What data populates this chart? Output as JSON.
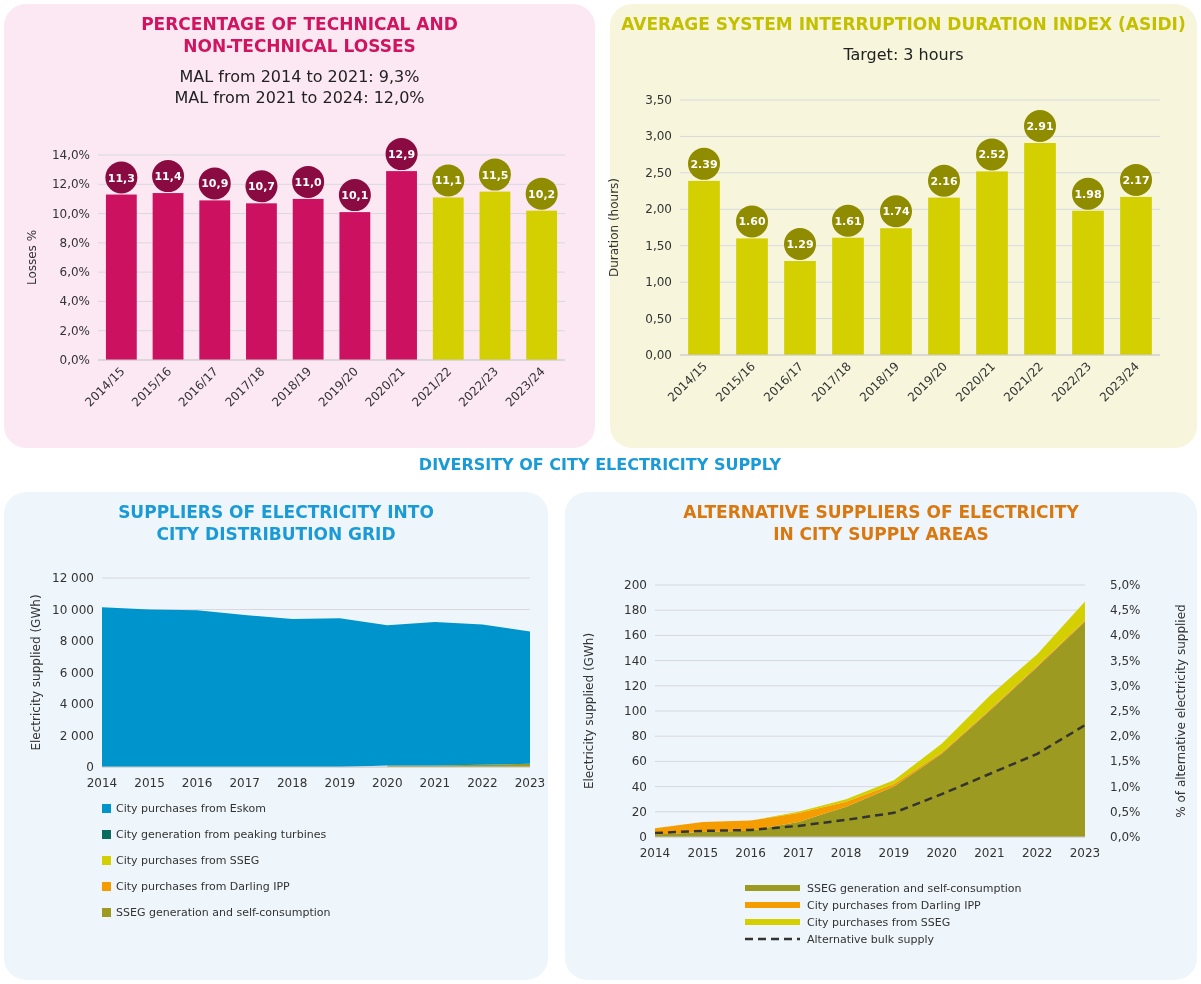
{
  "chart_data": [
    {
      "type": "bar",
      "title": "PERCENTAGE OF TECHNICAL AND NON-TECHNICAL LOSSES",
      "subtitle": "MAL from 2014 to 2021: 9,3%\nMAL from 2021 to 2024: 12,0%",
      "ylabel": "Losses %",
      "categories": [
        "2014/15",
        "2015/16",
        "2016/17",
        "2017/18",
        "2018/19",
        "2019/20",
        "2020/21",
        "2021/22",
        "2022/23",
        "2023/24"
      ],
      "values": [
        11.3,
        11.4,
        10.9,
        10.7,
        11.0,
        10.1,
        12.9,
        11.1,
        11.5,
        10.2
      ],
      "value_labels": [
        "11,3",
        "11,4",
        "10,9",
        "10,7",
        "11,0",
        "10,1",
        "12,9",
        "11,1",
        "11,5",
        "10,2"
      ],
      "colors": [
        "#cc1160",
        "#cc1160",
        "#cc1160",
        "#cc1160",
        "#cc1160",
        "#cc1160",
        "#cc1160",
        "#d4cf00",
        "#d4cf00",
        "#d4cf00"
      ],
      "ylim": [
        0,
        14
      ],
      "yticks": [
        {
          "value": 0,
          "label": "0,0%"
        },
        {
          "value": 2,
          "label": "2,0%"
        },
        {
          "value": 4,
          "label": "4,0%"
        },
        {
          "value": 6,
          "label": "6,0%"
        },
        {
          "value": 8,
          "label": "8,0%"
        },
        {
          "value": 10,
          "label": "10,0%"
        },
        {
          "value": 12,
          "label": "12,0%"
        },
        {
          "value": 14,
          "label": "14,0%"
        }
      ],
      "grid": "y"
    },
    {
      "type": "bar",
      "title": "AVERAGE SYSTEM INTERRUPTION DURATION INDEX (ASIDI)",
      "subtitle": "Target: 3 hours",
      "ylabel": "Duration (hours)",
      "categories": [
        "2014/15",
        "2015/16",
        "2016/17",
        "2017/18",
        "2018/19",
        "2019/20",
        "2020/21",
        "2021/22",
        "2022/23",
        "2023/24"
      ],
      "values": [
        2.39,
        1.6,
        1.29,
        1.61,
        1.74,
        2.16,
        2.52,
        2.91,
        1.98,
        2.17
      ],
      "value_labels": [
        "2.39",
        "1.60",
        "1.29",
        "1.61",
        "1.74",
        "2.16",
        "2.52",
        "2.91",
        "1.98",
        "2.17"
      ],
      "colors": [
        "#d4cf00",
        "#d4cf00",
        "#d4cf00",
        "#d4cf00",
        "#d4cf00",
        "#d4cf00",
        "#d4cf00",
        "#d4cf00",
        "#d4cf00",
        "#d4cf00"
      ],
      "ylim": [
        0,
        3.5
      ],
      "yticks": [
        {
          "value": 0,
          "label": "0,00"
        },
        {
          "value": 0.5,
          "label": "0,50"
        },
        {
          "value": 1,
          "label": "1,00"
        },
        {
          "value": 1.5,
          "label": "1,50"
        },
        {
          "value": 2,
          "label": "2,00"
        },
        {
          "value": 2.5,
          "label": "2,50"
        },
        {
          "value": 3,
          "label": "3,00"
        },
        {
          "value": 3.5,
          "label": "3,50"
        }
      ],
      "grid": "y"
    },
    {
      "type": "area",
      "stacked": true,
      "title": "SUPPLIERS OF ELECTRICITY INTO CITY DISTRIBUTION GRID",
      "annotations": [
        "DIVERSITY OF CITY ELECTRICITY SUPPLY"
      ],
      "ylabel": "Electricity supplied (GWh)",
      "x": [
        2014,
        2015,
        2016,
        2017,
        2018,
        2019,
        2020,
        2021,
        2022,
        2023
      ],
      "xlim": [
        2014,
        2023
      ],
      "xticks": [
        2014,
        2015,
        2016,
        2017,
        2018,
        2019,
        2020,
        2021,
        2022,
        2023
      ],
      "ylim": [
        0,
        12000
      ],
      "yticks": [
        {
          "value": 0,
          "label": "0"
        },
        {
          "value": 2000,
          "label": "2 000"
        },
        {
          "value": 4000,
          "label": "4 000"
        },
        {
          "value": 6000,
          "label": "6 000"
        },
        {
          "value": 8000,
          "label": "8 000"
        },
        {
          "value": 10000,
          "label": "10 000"
        },
        {
          "value": 12000,
          "label": "12 000"
        }
      ],
      "grid": "y",
      "legend": "bottom",
      "series": [
        {
          "name": "SSEG generation and self-consumption",
          "color": "#9c9a20",
          "values": [
            null,
            null,
            null,
            null,
            null,
            null,
            100,
            100,
            150,
            200
          ]
        },
        {
          "name": "City purchases from Darling IPP",
          "color": "#f59c00",
          "values": [
            null,
            null,
            null,
            null,
            null,
            null,
            null,
            null,
            null,
            null
          ]
        },
        {
          "name": "City purchases from SSEG",
          "color": "#d4cf00",
          "values": [
            null,
            null,
            null,
            null,
            null,
            null,
            null,
            null,
            null,
            null
          ]
        },
        {
          "name": "City generation from peaking turbines",
          "color": "#0b6b5e",
          "values": [
            null,
            null,
            null,
            null,
            null,
            null,
            null,
            null,
            null,
            null
          ]
        },
        {
          "name": "City purchases from Eskom",
          "color": "#0094cc",
          "values": [
            10150,
            10000,
            9950,
            9650,
            9400,
            9450,
            8900,
            9100,
            8900,
            8400
          ]
        }
      ]
    },
    {
      "type": "area",
      "stacked": true,
      "title": "ALTERNATIVE SUPPLIERS OF ELECTRICITY IN CITY SUPPLY AREAS",
      "ylabel": "Electricity supplied (GWh)",
      "y2label": "% of alternative electricity supplied",
      "x": [
        2014,
        2015,
        2016,
        2017,
        2018,
        2019,
        2020,
        2021,
        2022,
        2023
      ],
      "xlim": [
        2014,
        2023
      ],
      "xticks": [
        2014,
        2015,
        2016,
        2017,
        2018,
        2019,
        2020,
        2021,
        2022,
        2023
      ],
      "ylim": [
        0,
        200
      ],
      "yticks": [
        0,
        20,
        40,
        60,
        80,
        100,
        120,
        140,
        160,
        180,
        200
      ],
      "y2lim": [
        0,
        5
      ],
      "y2ticks": [
        {
          "value": 0,
          "label": "0,0%"
        },
        {
          "value": 0.5,
          "label": "0,5%"
        },
        {
          "value": 1,
          "label": "1,0%"
        },
        {
          "value": 1.5,
          "label": "1,5%"
        },
        {
          "value": 2,
          "label": "2,0%"
        },
        {
          "value": 2.5,
          "label": "2,5%"
        },
        {
          "value": 3,
          "label": "3,0%"
        },
        {
          "value": 3.5,
          "label": "3,5%"
        },
        {
          "value": 4,
          "label": "4,0%"
        },
        {
          "value": 4.5,
          "label": "4,5%"
        },
        {
          "value": 5,
          "label": "5,0%"
        }
      ],
      "grid": "y",
      "legend": "bottom",
      "series": [
        {
          "name": "SSEG generation and self-consumption",
          "color": "#9c9a20",
          "values": [
            2,
            4,
            5,
            12,
            24,
            40,
            66,
            100,
            135,
            171
          ]
        },
        {
          "name": "City purchases from Darling IPP",
          "color": "#f59c00",
          "values": [
            5,
            8,
            8,
            7,
            4,
            2,
            1,
            1,
            1,
            1
          ]
        },
        {
          "name": "City purchases from SSEG",
          "color": "#d4cf00",
          "values": [
            0,
            0,
            0,
            1,
            2,
            3,
            7,
            11,
            9,
            15
          ]
        },
        {
          "name": "Alternative bulk supply",
          "type": "line",
          "axis": "y2",
          "line_style": "dashed",
          "color": "#333333",
          "values": [
            0.08,
            0.12,
            0.14,
            0.22,
            0.34,
            0.48,
            0.85,
            1.25,
            1.65,
            2.22
          ]
        }
      ]
    }
  ]
}
